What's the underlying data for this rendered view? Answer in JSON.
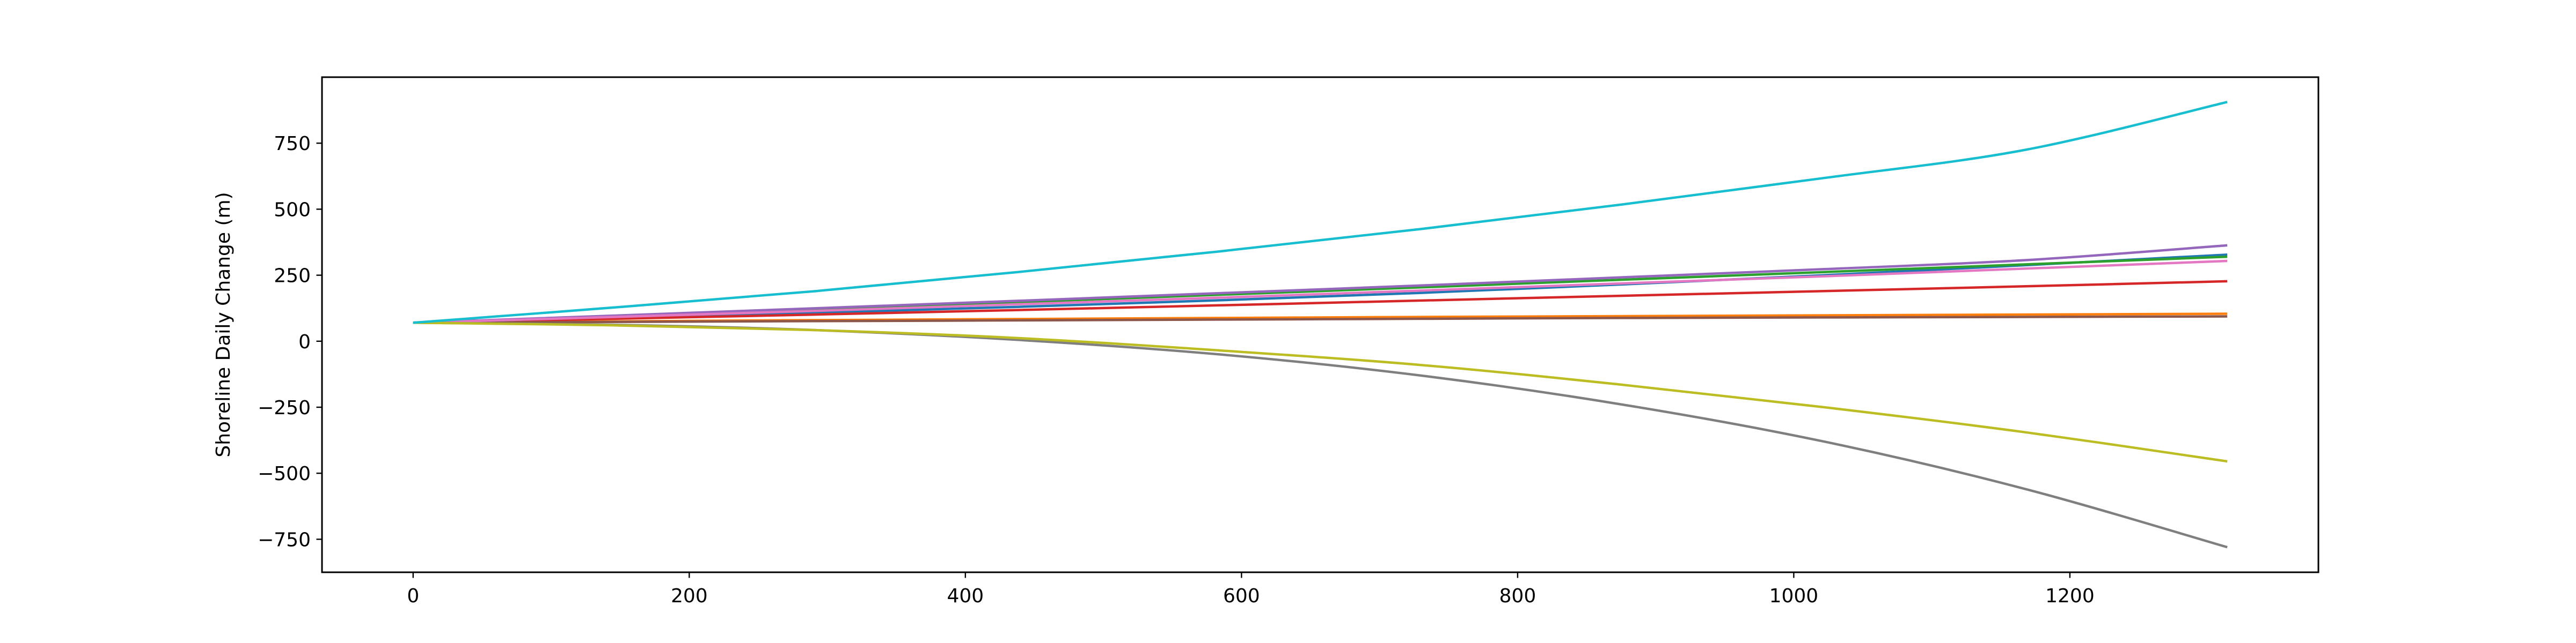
{
  "chart_data": {
    "type": "line",
    "title": "",
    "xlabel": "",
    "ylabel": "Shoreline Daily Change (m)",
    "xlim": [
      -66,
      1380
    ],
    "ylim": [
      -875,
      1000
    ],
    "x_ticks": [
      0,
      200,
      400,
      600,
      800,
      1000,
      1200
    ],
    "y_ticks": [
      -750,
      -500,
      -250,
      0,
      250,
      500,
      750
    ],
    "x_tick_labels": [
      "0",
      "200",
      "400",
      "600",
      "800",
      "1000",
      "1200"
    ],
    "y_tick_labels": [
      "−750",
      "−500",
      "−250",
      "0",
      "250",
      "500",
      "750"
    ],
    "grid": false,
    "legend": "none",
    "x_start": 0,
    "x_end": 1314,
    "series": [
      {
        "color": "#1f77b4",
        "values": [
          70,
          88,
          108,
          130,
          155,
          183,
          215,
          250,
          288,
          328
        ]
      },
      {
        "color": "#ff7f0e",
        "values": [
          70,
          75,
          80,
          84,
          88,
          92,
          95,
          98,
          101,
          104
        ]
      },
      {
        "color": "#2ca02c",
        "values": [
          70,
          95,
          121,
          148,
          176,
          204,
          233,
          262,
          291,
          320
        ]
      },
      {
        "color": "#d62728",
        "values": [
          70,
          85,
          101,
          118,
          136,
          154,
          172,
          190,
          208,
          227
        ]
      },
      {
        "color": "#9467bd",
        "values": [
          70,
          97,
          125,
          153,
          182,
          211,
          242,
          273,
          307,
          363
        ]
      },
      {
        "color": "#8c564b",
        "values": [
          70,
          73,
          76,
          79,
          82,
          85,
          88,
          90,
          92,
          94
        ]
      },
      {
        "color": "#e377c2",
        "values": [
          70,
          92,
          115,
          140,
          165,
          192,
          219,
          246,
          275,
          304
        ]
      },
      {
        "color": "#7f7f7f",
        "values": [
          70,
          62,
          42,
          5,
          -50,
          -130,
          -240,
          -380,
          -560,
          -780
        ]
      },
      {
        "color": "#bcbd22",
        "values": [
          70,
          60,
          42,
          12,
          -35,
          -90,
          -165,
          -250,
          -345,
          -455
        ]
      },
      {
        "color": "#17becf",
        "values": [
          70,
          128,
          190,
          262,
          340,
          425,
          518,
          618,
          725,
          906
        ]
      }
    ]
  }
}
